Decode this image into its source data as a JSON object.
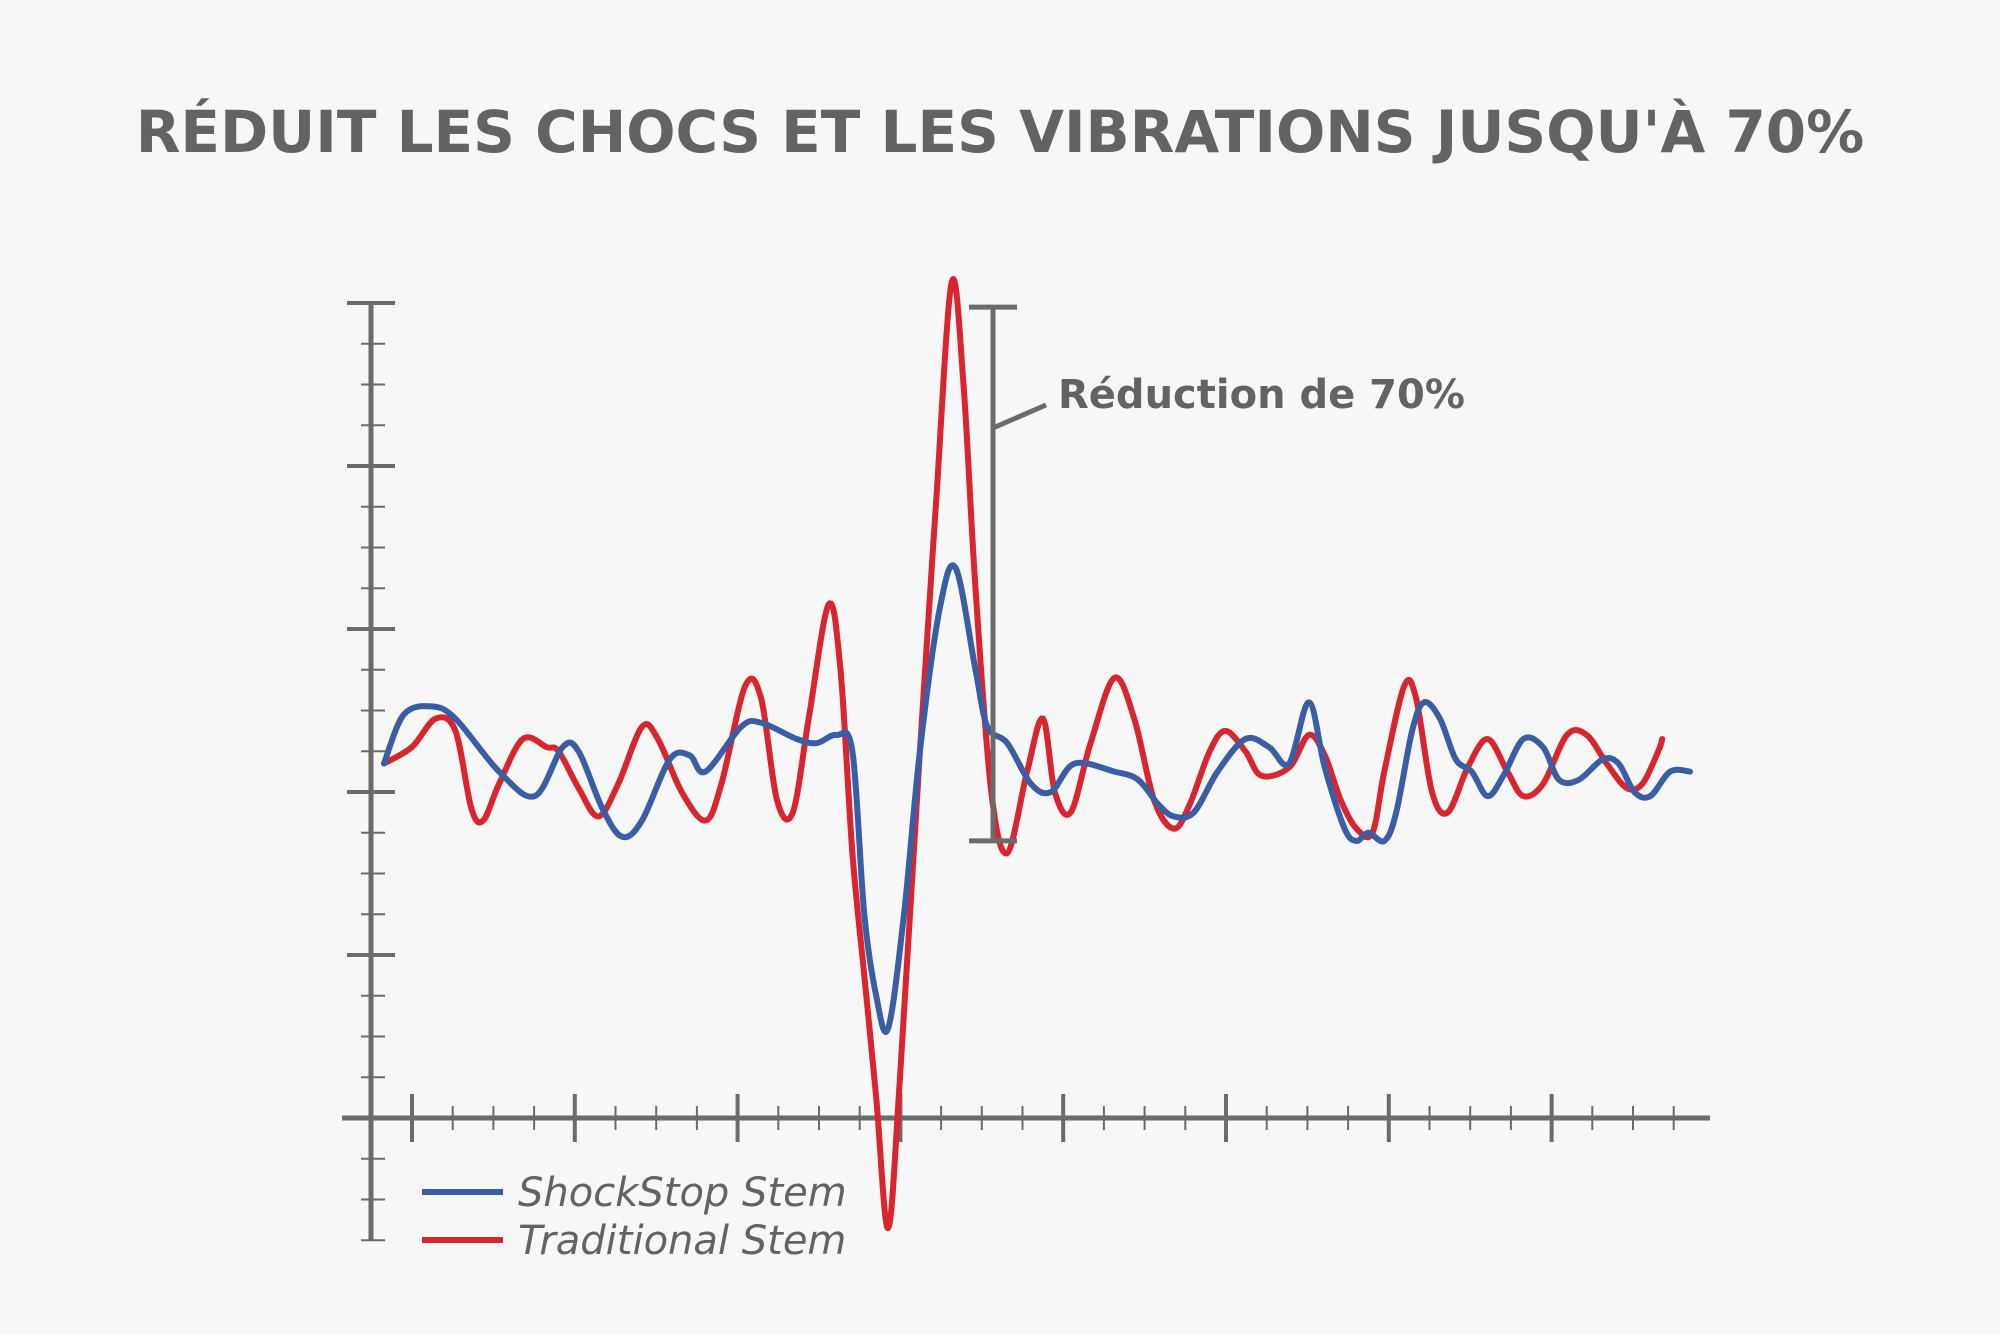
{
  "title": "RÉDUIT LES CHOCS ET LES VIBRATIONS JUSQU'À 70%",
  "annotation": "Réduction de 70%",
  "colors": {
    "axis": "#6b6b6b",
    "text": "#636363",
    "shockstop": "#3a5ea6",
    "traditional": "#d9262e",
    "background": "#f7f7f7"
  },
  "chart_data": {
    "type": "line",
    "title": "RÉDUIT LES CHOCS ET LES VIBRATIONS JUSQU'À 70%",
    "xlabel": "",
    "ylabel": "",
    "xlim": [
      0,
      33
    ],
    "ylim": [
      -3,
      20
    ],
    "grid": false,
    "legend": "bottom-left",
    "annotation": {
      "text": "Réduction de 70%",
      "from": 6.8,
      "to": 19.9
    },
    "series": [
      {
        "name": "ShockStop Stem",
        "color": "#3a5ea6",
        "points": [
          [
            0.1,
            8.7
          ],
          [
            0.6,
            9.9
          ],
          [
            1.3,
            10.1
          ],
          [
            1.9,
            9.8
          ],
          [
            3.0,
            8.5
          ],
          [
            3.9,
            7.9
          ],
          [
            4.6,
            9.1
          ],
          [
            5.0,
            9.0
          ],
          [
            5.6,
            7.6
          ],
          [
            6.1,
            6.9
          ],
          [
            6.6,
            7.3
          ],
          [
            7.3,
            8.8
          ],
          [
            7.8,
            8.9
          ],
          [
            8.2,
            8.5
          ],
          [
            9.1,
            9.6
          ],
          [
            9.6,
            9.7
          ],
          [
            10.5,
            9.3
          ],
          [
            11.0,
            9.2
          ],
          [
            11.5,
            9.4
          ],
          [
            11.9,
            9.0
          ],
          [
            12.2,
            5.0
          ],
          [
            12.5,
            3.0
          ],
          [
            12.8,
            2.2
          ],
          [
            13.2,
            5.0
          ],
          [
            13.6,
            9.0
          ],
          [
            14.1,
            12.5
          ],
          [
            14.5,
            13.5
          ],
          [
            15.0,
            11.0
          ],
          [
            15.3,
            9.6
          ],
          [
            15.8,
            9.2
          ],
          [
            16.4,
            8.2
          ],
          [
            16.9,
            8.0
          ],
          [
            17.5,
            8.7
          ],
          [
            18.5,
            8.5
          ],
          [
            19.1,
            8.3
          ],
          [
            19.6,
            7.7
          ],
          [
            20.0,
            7.4
          ],
          [
            20.5,
            7.5
          ],
          [
            21.1,
            8.5
          ],
          [
            21.8,
            9.3
          ],
          [
            22.4,
            9.1
          ],
          [
            22.9,
            8.7
          ],
          [
            23.4,
            10.2
          ],
          [
            23.8,
            8.6
          ],
          [
            24.3,
            7.1
          ],
          [
            24.6,
            6.8
          ],
          [
            24.9,
            7.0
          ],
          [
            25.3,
            6.8
          ],
          [
            25.6,
            7.5
          ],
          [
            26.0,
            9.5
          ],
          [
            26.3,
            10.2
          ],
          [
            26.7,
            9.8
          ],
          [
            27.1,
            8.8
          ],
          [
            27.5,
            8.5
          ],
          [
            27.9,
            7.9
          ],
          [
            28.3,
            8.4
          ],
          [
            28.8,
            9.3
          ],
          [
            29.3,
            9.1
          ],
          [
            29.7,
            8.3
          ],
          [
            30.2,
            8.3
          ],
          [
            30.8,
            8.8
          ],
          [
            31.2,
            8.7
          ],
          [
            31.6,
            8.0
          ],
          [
            32.0,
            7.9
          ],
          [
            32.5,
            8.5
          ],
          [
            33.0,
            8.5
          ]
        ]
      },
      {
        "name": "Traditional Stem",
        "color": "#d9262e",
        "points": [
          [
            0.1,
            8.7
          ],
          [
            0.8,
            9.1
          ],
          [
            1.4,
            9.8
          ],
          [
            1.9,
            9.5
          ],
          [
            2.3,
            7.6
          ],
          [
            2.6,
            7.3
          ],
          [
            3.0,
            8.2
          ],
          [
            3.6,
            9.3
          ],
          [
            4.2,
            9.1
          ],
          [
            4.5,
            9.0
          ],
          [
            5.0,
            8.1
          ],
          [
            5.5,
            7.4
          ],
          [
            6.0,
            8.2
          ],
          [
            6.6,
            9.6
          ],
          [
            7.0,
            9.3
          ],
          [
            7.6,
            8.0
          ],
          [
            8.2,
            7.3
          ],
          [
            8.6,
            8.2
          ],
          [
            9.2,
            10.6
          ],
          [
            9.6,
            10.3
          ],
          [
            10.0,
            7.8
          ],
          [
            10.4,
            7.5
          ],
          [
            10.8,
            9.8
          ],
          [
            11.3,
            12.6
          ],
          [
            11.6,
            11.0
          ],
          [
            11.9,
            6.5
          ],
          [
            12.2,
            3.5
          ],
          [
            12.5,
            0.5
          ],
          [
            12.8,
            -2.7
          ],
          [
            13.1,
            1.0
          ],
          [
            13.6,
            9.0
          ],
          [
            14.0,
            15.0
          ],
          [
            14.4,
            20.5
          ],
          [
            14.7,
            18.0
          ],
          [
            15.0,
            13.0
          ],
          [
            15.4,
            8.0
          ],
          [
            15.8,
            6.5
          ],
          [
            16.3,
            8.5
          ],
          [
            16.7,
            9.8
          ],
          [
            17.0,
            8.0
          ],
          [
            17.4,
            7.5
          ],
          [
            17.9,
            9.2
          ],
          [
            18.5,
            10.8
          ],
          [
            19.0,
            9.8
          ],
          [
            19.5,
            7.8
          ],
          [
            20.0,
            7.1
          ],
          [
            20.4,
            7.7
          ],
          [
            20.9,
            9.0
          ],
          [
            21.3,
            9.5
          ],
          [
            21.8,
            9.0
          ],
          [
            22.2,
            8.4
          ],
          [
            22.9,
            8.6
          ],
          [
            23.4,
            9.4
          ],
          [
            23.8,
            8.9
          ],
          [
            24.2,
            7.8
          ],
          [
            24.6,
            7.1
          ],
          [
            25.0,
            7.0
          ],
          [
            25.3,
            8.5
          ],
          [
            25.8,
            10.6
          ],
          [
            26.1,
            10.3
          ],
          [
            26.5,
            8.0
          ],
          [
            26.9,
            7.5
          ],
          [
            27.4,
            8.6
          ],
          [
            27.9,
            9.3
          ],
          [
            28.4,
            8.5
          ],
          [
            28.8,
            7.9
          ],
          [
            29.3,
            8.2
          ],
          [
            29.9,
            9.4
          ],
          [
            30.4,
            9.4
          ],
          [
            30.9,
            8.7
          ],
          [
            31.4,
            8.1
          ],
          [
            31.8,
            8.2
          ],
          [
            32.2,
            9.0
          ],
          [
            32.3,
            9.3
          ]
        ]
      }
    ]
  }
}
